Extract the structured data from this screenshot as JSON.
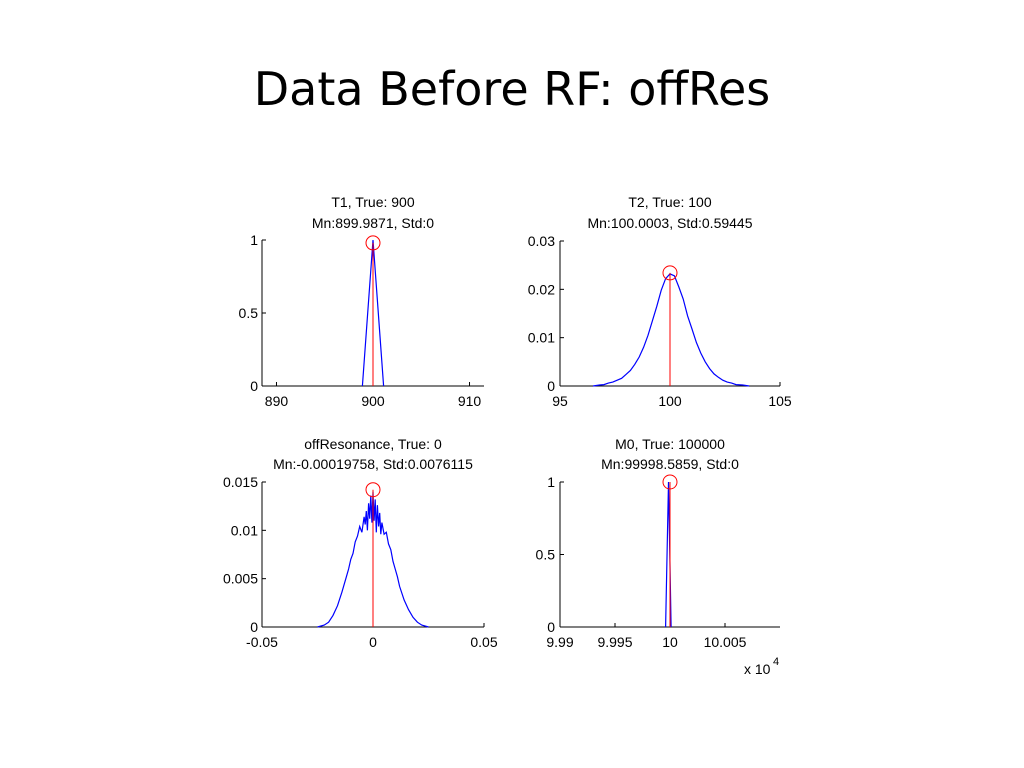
{
  "slide": {
    "title": "Data Before RF: offRes"
  },
  "colors": {
    "histogram": "#0000ff",
    "true_value": "#ff0000",
    "axis": "#000000"
  },
  "chart_data": [
    {
      "type": "line",
      "title": [
        "T1, True: 900",
        "Mn:899.9871, Std:0"
      ],
      "true_value": 900,
      "xlim": [
        888.5,
        911.5
      ],
      "ylim": [
        0,
        1
      ],
      "xticks": [
        890,
        900,
        910
      ],
      "xtick_labels": [
        "890",
        "900",
        "910"
      ],
      "yticks": [
        0,
        0.5,
        1
      ],
      "ytick_labels": [
        "0",
        "0.5",
        "1"
      ],
      "series": [
        {
          "x": [
            898.9,
            900,
            901.1
          ],
          "y": [
            0,
            1,
            0
          ]
        }
      ],
      "marker": {
        "x": 900,
        "y": 0.98
      }
    },
    {
      "type": "line",
      "title": [
        "T2, True: 100",
        "Mn:100.0003, Std:0.59445"
      ],
      "true_value": 100,
      "xlim": [
        95,
        105
      ],
      "ylim": [
        0,
        0.03
      ],
      "xticks": [
        95,
        100,
        105
      ],
      "xtick_labels": [
        "95",
        "100",
        "105"
      ],
      "yticks": [
        0,
        0.01,
        0.02,
        0.03
      ],
      "ytick_labels": [
        "0",
        "0.01",
        "0.02",
        "0.03"
      ],
      "series": [
        {
          "x": [
            96.5,
            96.8,
            97.0,
            97.2,
            97.4,
            97.6,
            97.8,
            98.0,
            98.2,
            98.4,
            98.6,
            98.8,
            99.0,
            99.2,
            99.4,
            99.6,
            99.8,
            100.0,
            100.2,
            100.4,
            100.6,
            100.8,
            101.0,
            101.2,
            101.4,
            101.6,
            101.8,
            102.0,
            102.2,
            102.4,
            102.6,
            102.8,
            103.0,
            103.3,
            103.6
          ],
          "y": [
            0,
            0.0002,
            0.0003,
            0.0006,
            0.0008,
            0.0012,
            0.0016,
            0.0024,
            0.0032,
            0.0045,
            0.006,
            0.008,
            0.0105,
            0.0135,
            0.0165,
            0.0198,
            0.0222,
            0.0232,
            0.0228,
            0.0205,
            0.018,
            0.0145,
            0.0118,
            0.009,
            0.0068,
            0.005,
            0.0036,
            0.0025,
            0.0018,
            0.0012,
            0.0008,
            0.0006,
            0.0003,
            0.0002,
            0
          ]
        }
      ],
      "marker": {
        "x": 100,
        "y": 0.0234
      }
    },
    {
      "type": "line",
      "title": [
        "offResonance, True: 0",
        "Mn:-0.00019758, Std:0.0076115"
      ],
      "true_value": 0,
      "xlim": [
        -0.05,
        0.05
      ],
      "ylim": [
        0,
        0.015
      ],
      "xticks": [
        -0.05,
        0,
        0.05
      ],
      "xtick_labels": [
        "-0.05",
        "0",
        "0.05"
      ],
      "yticks": [
        0,
        0.005,
        0.01,
        0.015
      ],
      "ytick_labels": [
        "0",
        "0.005",
        "0.01",
        "0.015"
      ],
      "series": [
        {
          "x": [
            -0.025,
            -0.022,
            -0.02,
            -0.018,
            -0.016,
            -0.014,
            -0.012,
            -0.011,
            -0.01,
            -0.009,
            -0.008,
            -0.007,
            -0.006,
            -0.005,
            -0.004,
            -0.0035,
            -0.003,
            -0.0025,
            -0.002,
            -0.0015,
            -0.001,
            -0.0005,
            0,
            0.0005,
            0.001,
            0.0015,
            0.002,
            0.0025,
            0.003,
            0.0035,
            0.004,
            0.005,
            0.006,
            0.007,
            0.008,
            0.009,
            0.01,
            0.011,
            0.012,
            0.014,
            0.016,
            0.018,
            0.02,
            0.022,
            0.025
          ],
          "y": [
            0,
            0.0002,
            0.0005,
            0.0012,
            0.0022,
            0.0036,
            0.0052,
            0.006,
            0.007,
            0.0076,
            0.0088,
            0.0094,
            0.0104,
            0.0098,
            0.0114,
            0.0106,
            0.012,
            0.01,
            0.0128,
            0.0112,
            0.0136,
            0.0108,
            0.014,
            0.011,
            0.0132,
            0.0098,
            0.0126,
            0.0104,
            0.0118,
            0.0096,
            0.0108,
            0.0096,
            0.0098,
            0.0086,
            0.008,
            0.0068,
            0.006,
            0.0052,
            0.0042,
            0.0028,
            0.0018,
            0.001,
            0.0005,
            0.0002,
            0
          ]
        }
      ],
      "marker": {
        "x": 0,
        "y": 0.0142
      }
    },
    {
      "type": "line",
      "title": [
        "M0, True: 100000",
        "Mn:99998.5859, Std:0"
      ],
      "true_value": 100000,
      "xlim": [
        99900,
        100100
      ],
      "ylim": [
        0,
        1
      ],
      "xticks": [
        99900,
        99950,
        100000,
        100050
      ],
      "xtick_labels": [
        "9.99",
        "9.995",
        "10",
        "10.005"
      ],
      "x_multiplier": "x 10",
      "x_multiplier_exp": "4",
      "yticks": [
        0,
        0.5,
        1
      ],
      "ytick_labels": [
        "0",
        "0.5",
        "1"
      ],
      "series": [
        {
          "x": [
            99996,
            99998.6,
            100001
          ],
          "y": [
            0,
            1,
            0
          ]
        }
      ],
      "marker": {
        "x": 100000,
        "y": 1
      }
    }
  ]
}
